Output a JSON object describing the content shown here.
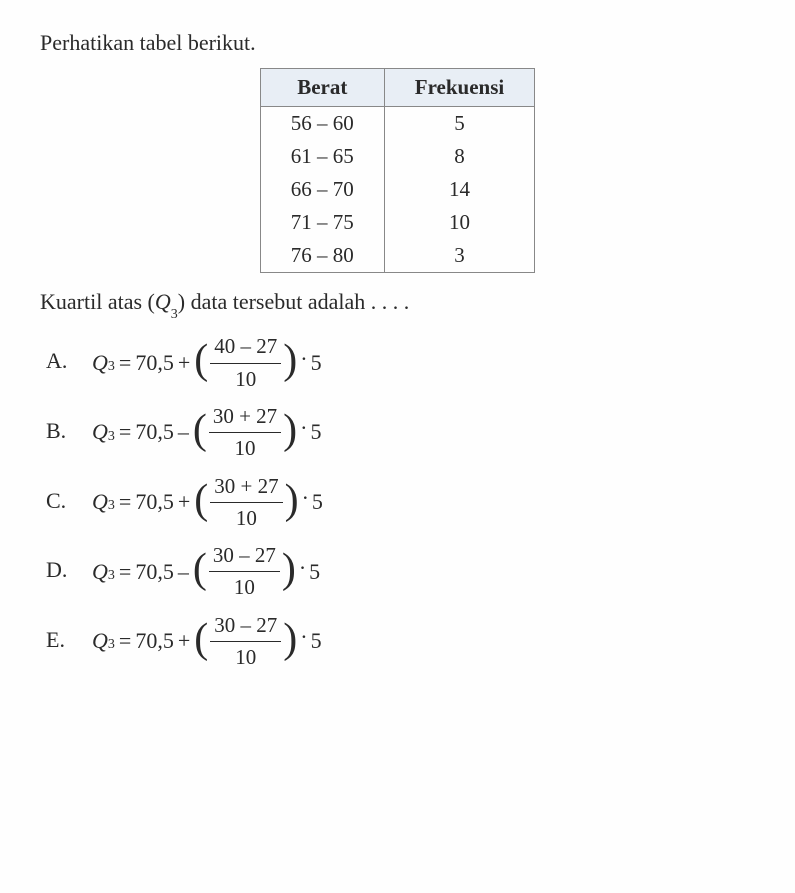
{
  "intro_text": "Perhatikan tabel berikut.",
  "table": {
    "header": {
      "col1": "Berat",
      "col2": "Frekuensi"
    },
    "rows": [
      {
        "berat": "56 – 60",
        "frek": "5"
      },
      {
        "berat": "61 – 65",
        "frek": "8"
      },
      {
        "berat": "66 – 70",
        "frek": "14"
      },
      {
        "berat": "71 – 75",
        "frek": "10"
      },
      {
        "berat": "76 – 80",
        "frek": "3"
      }
    ],
    "styling": {
      "border_color": "#888888",
      "header_bg": "#e8eef5",
      "text_color": "#2a2a2a",
      "font_size": 21
    }
  },
  "question": {
    "prefix": "Kuartil atas (",
    "var": "Q",
    "sub": "3",
    "suffix": ") data tersebut adalah . . . ."
  },
  "options": [
    {
      "letter": "A.",
      "lhs_var": "Q",
      "lhs_sub": "3",
      "base": "70,5",
      "op": "+",
      "num": "40 – 27",
      "den": "10",
      "mult": "5"
    },
    {
      "letter": "B.",
      "lhs_var": "Q",
      "lhs_sub": "3",
      "base": "70,5",
      "op": "–",
      "num": "30 + 27",
      "den": "10",
      "mult": "5"
    },
    {
      "letter": "C.",
      "lhs_var": "Q",
      "lhs_sub": "3",
      "base": "70,5",
      "op": "+",
      "num": "30 + 27",
      "den": "10",
      "mult": "5"
    },
    {
      "letter": "D.",
      "lhs_var": "Q",
      "lhs_sub": "3",
      "base": "70,5",
      "op": "–",
      "num": "30 – 27",
      "den": "10",
      "mult": "5"
    },
    {
      "letter": "E.",
      "lhs_var": "Q",
      "lhs_sub": "3",
      "base": "70,5",
      "op": "+",
      "num": "30 – 27",
      "den": "10",
      "mult": "5"
    }
  ],
  "styling": {
    "font_family": "Times New Roman",
    "body_font_size": 22,
    "text_color": "#2a2a2a",
    "background_color": "#fefefe",
    "fraction_rule_width": 1.5
  }
}
